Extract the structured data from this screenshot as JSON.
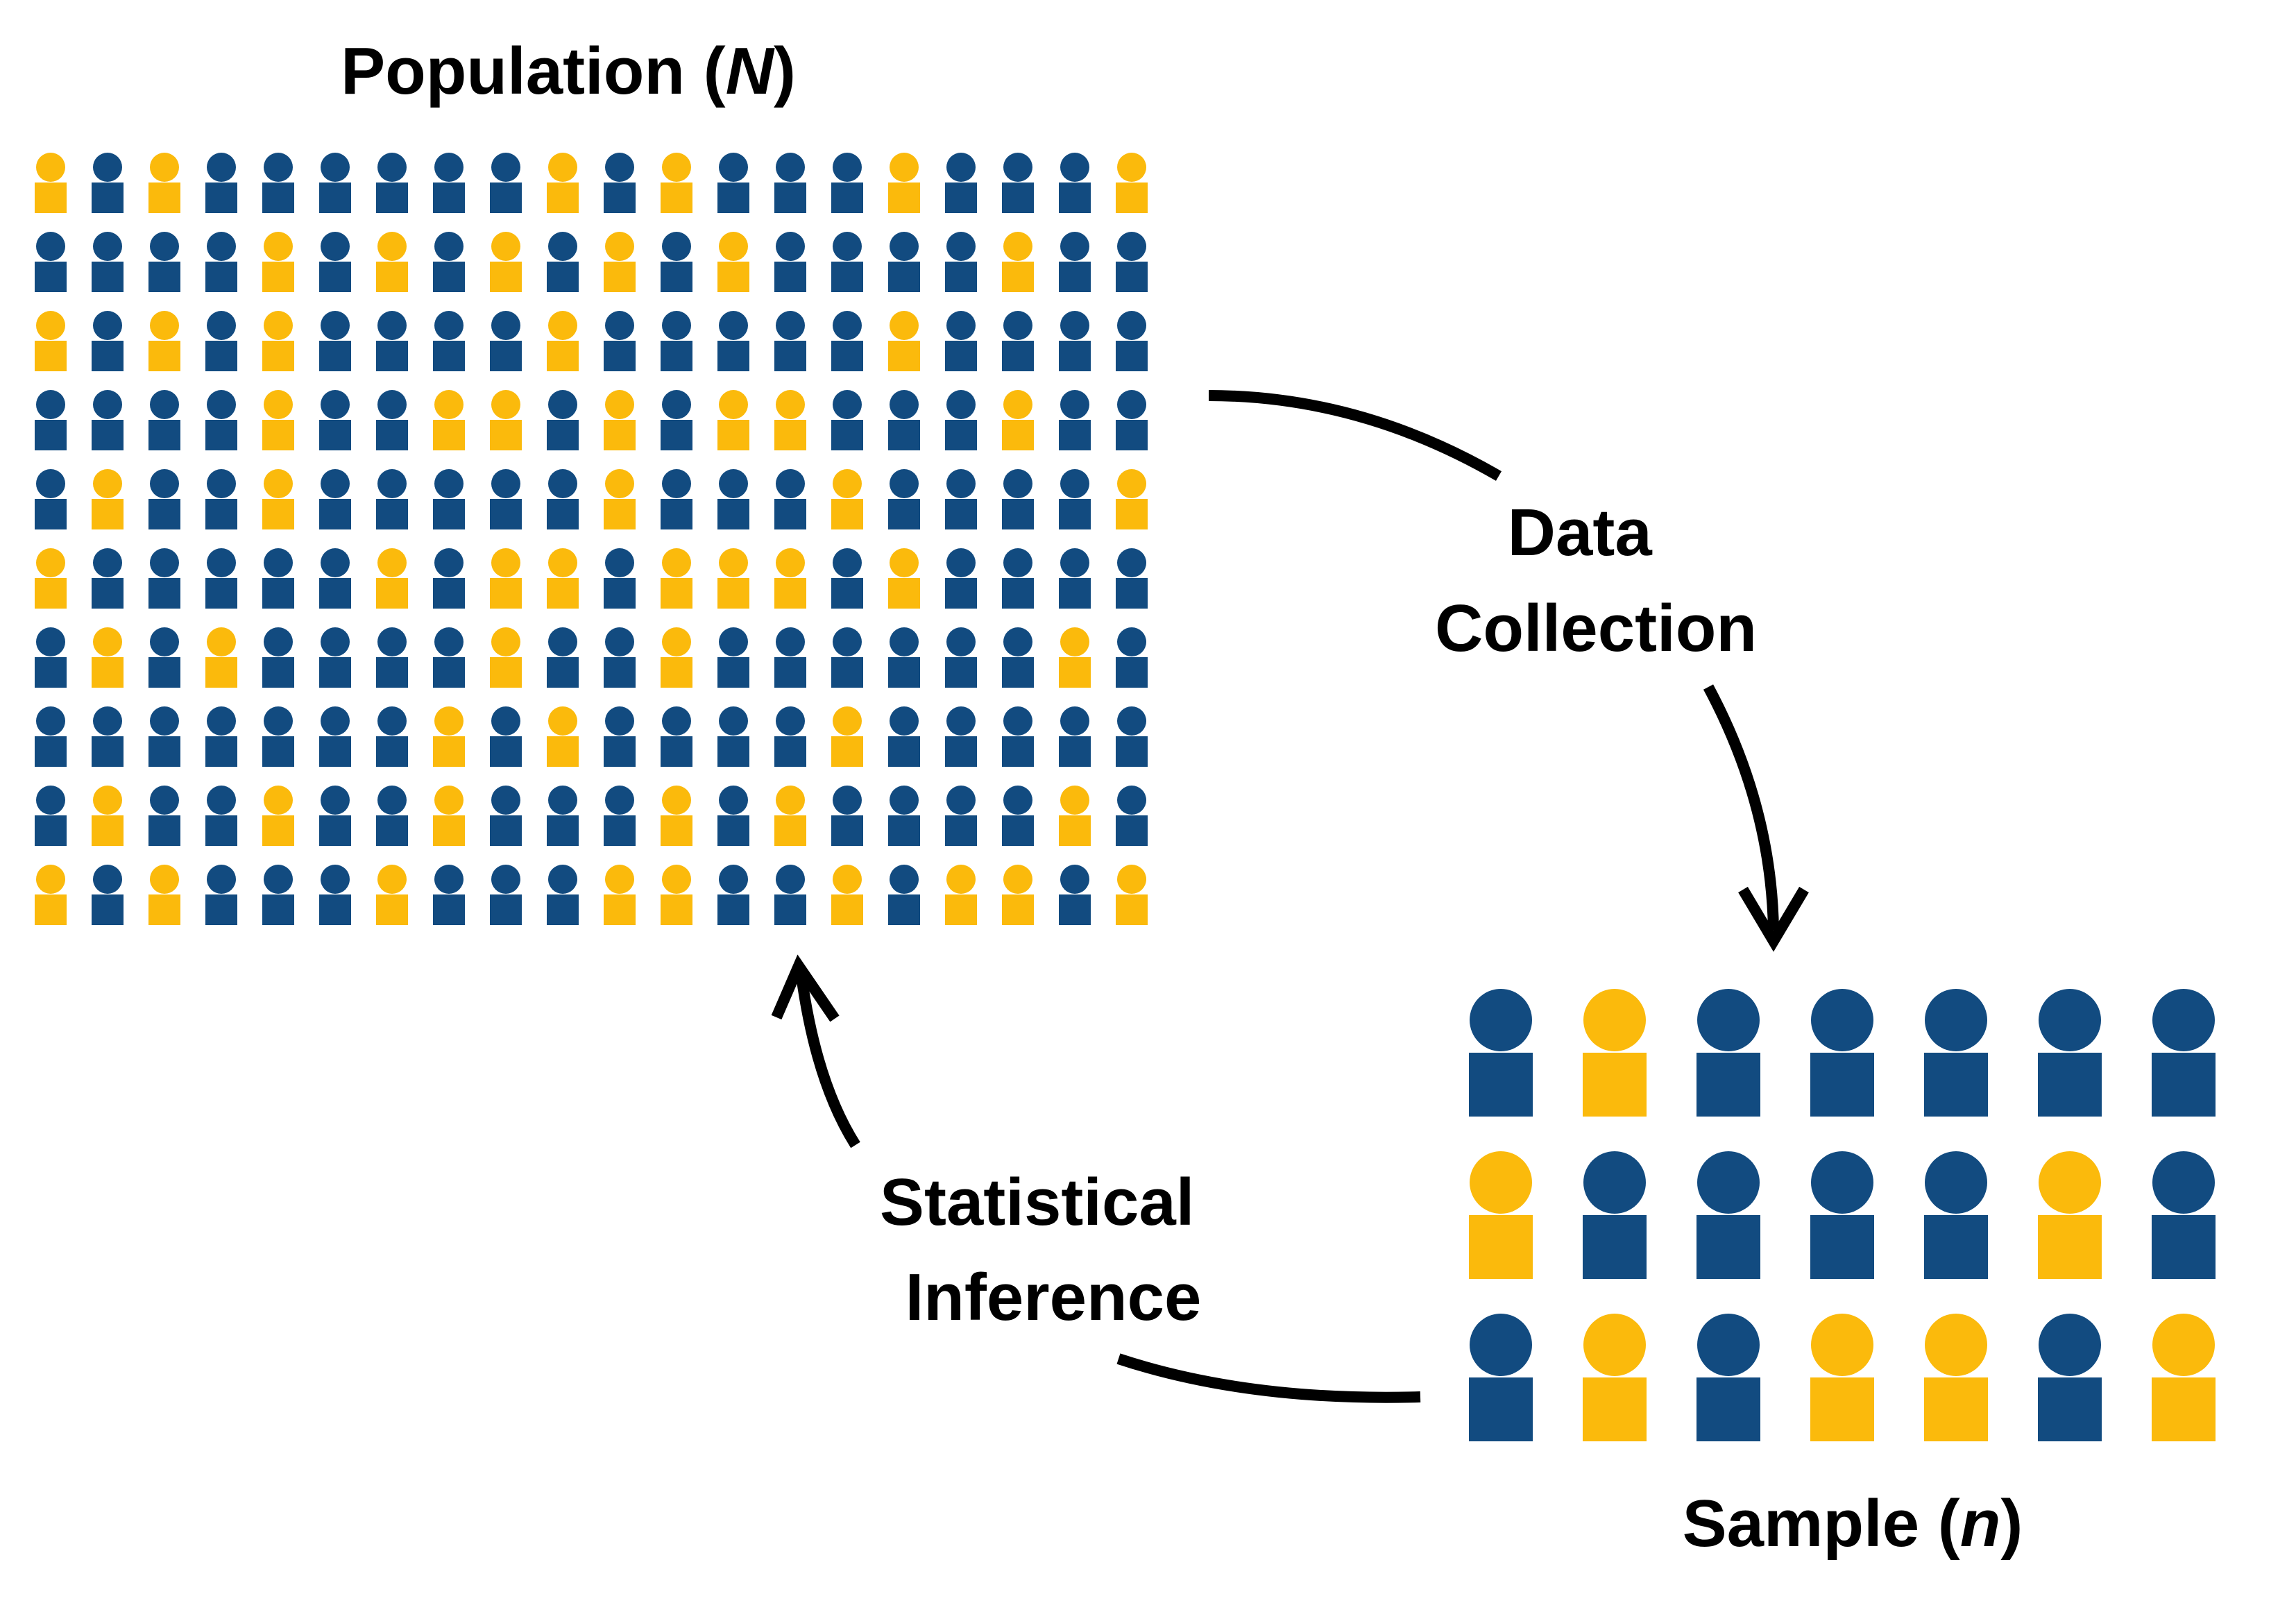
{
  "colors": {
    "blue": "#124b80",
    "gold": "#fbba0c",
    "arrow": "#000000",
    "text": "#000000"
  },
  "population": {
    "title_text": "Population (",
    "title_var": "N",
    "title_close": ")",
    "grid": [
      "GBGBBBBBBGBGBBBGBBBG",
      "BBBBGBGBGBGBGBBBBGBB",
      "GBGBGBBBBGBBBBBGBBBB",
      "BBBBGBBGGBGBGGBBBGBB",
      "BGBBGBBBBBGBBBGBBBBG",
      "GBBBBBGBGGBGGGBGBBBB",
      "BGBGBBBBGBBGBBBBBBGB",
      "BBBBBBBGBGBBBBGBBBBB",
      "BGBBGBBGBBBGBGBBBBGB",
      "GBGBBBGBBBGGBBGBGGBG"
    ]
  },
  "sample": {
    "title_text": "Sample (",
    "title_var": "n",
    "title_close": ")",
    "grid": [
      "BGBBBBB",
      "GBBBBGB",
      "BGBGGBG"
    ]
  },
  "steps": {
    "data_collection": {
      "line1": "Data",
      "line2": "Collection"
    },
    "statistical_inference": {
      "line1": "Statistical",
      "line2": "Inference"
    }
  }
}
